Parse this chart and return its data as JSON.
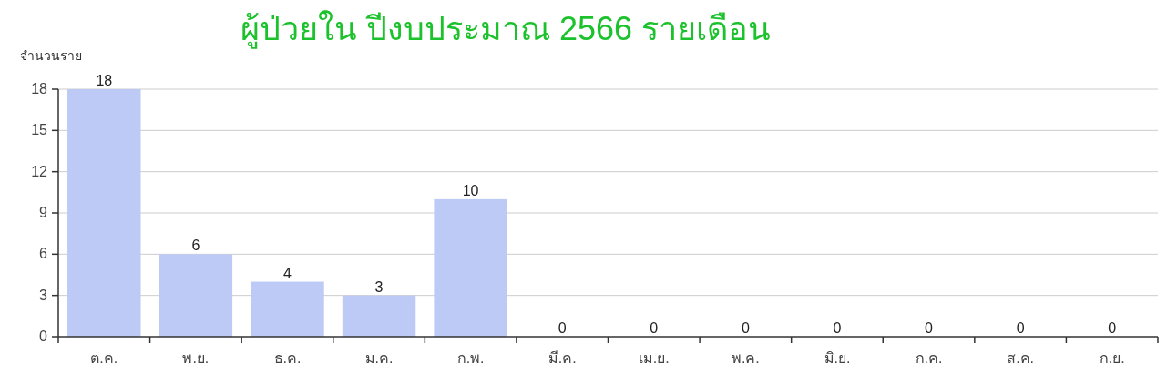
{
  "chart_data": {
    "type": "bar",
    "title": "ผู้ป่วยใน ปีงบประมาณ 2566 รายเดือน",
    "ylabel": "จำนวนราย",
    "categories": [
      "ต.ค.",
      "พ.ย.",
      "ธ.ค.",
      "ม.ค.",
      "ก.พ.",
      "มี.ค.",
      "เม.ย.",
      "พ.ค.",
      "มิ.ย.",
      "ก.ค.",
      "ส.ค.",
      "ก.ย."
    ],
    "values": [
      18,
      6,
      4,
      3,
      10,
      0,
      0,
      0,
      0,
      0,
      0,
      0
    ],
    "color": "#bccaf5",
    "ylim": [
      0,
      18
    ],
    "yticks": [
      0,
      3,
      6,
      9,
      12,
      15,
      18
    ],
    "grid": "y",
    "data_labels": true
  }
}
